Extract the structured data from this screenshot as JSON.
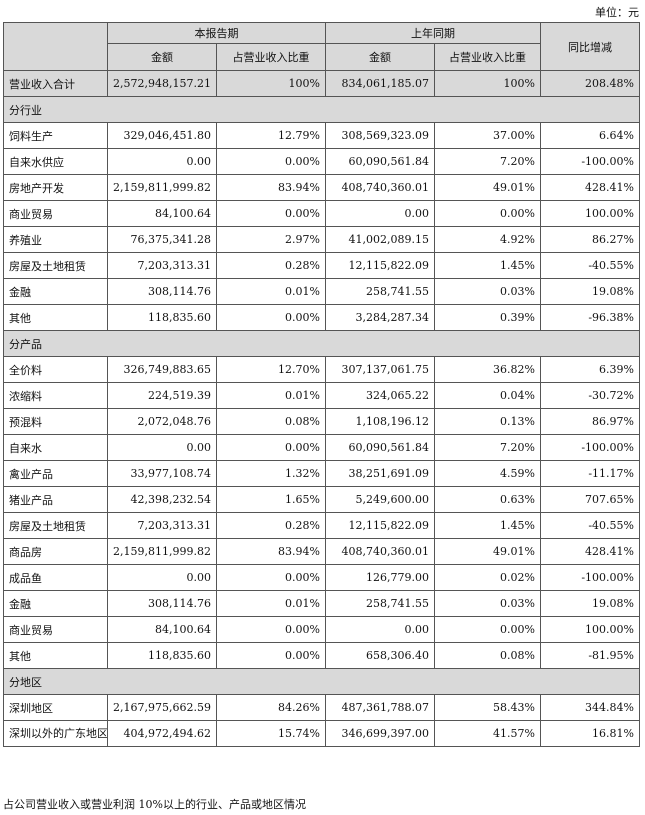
{
  "unit_label": "单位：元",
  "header": {
    "col_current": "本报告期",
    "col_prior": "上年同期",
    "col_yoy": "同比增减",
    "sub_amount": "金额",
    "sub_ratio": "占营业收入比重"
  },
  "total": {
    "name": "营业收入合计",
    "cur_amount": "2,572,948,157.21",
    "cur_ratio": "100%",
    "prior_amount": "834,061,185.07",
    "prior_ratio": "100%",
    "yoy": "208.48%"
  },
  "sections": [
    {
      "title": "分行业",
      "rows": [
        {
          "name": "饲料生产",
          "cur_amount": "329,046,451.80",
          "cur_ratio": "12.79%",
          "prior_amount": "308,569,323.09",
          "prior_ratio": "37.00%",
          "yoy": "6.64%"
        },
        {
          "name": "自来水供应",
          "cur_amount": "0.00",
          "cur_ratio": "0.00%",
          "prior_amount": "60,090,561.84",
          "prior_ratio": "7.20%",
          "yoy": "-100.00%"
        },
        {
          "name": "房地产开发",
          "cur_amount": "2,159,811,999.82",
          "cur_ratio": "83.94%",
          "prior_amount": "408,740,360.01",
          "prior_ratio": "49.01%",
          "yoy": "428.41%"
        },
        {
          "name": "商业贸易",
          "cur_amount": "84,100.64",
          "cur_ratio": "0.00%",
          "prior_amount": "0.00",
          "prior_ratio": "0.00%",
          "yoy": "100.00%"
        },
        {
          "name": "养殖业",
          "cur_amount": "76,375,341.28",
          "cur_ratio": "2.97%",
          "prior_amount": "41,002,089.15",
          "prior_ratio": "4.92%",
          "yoy": "86.27%"
        },
        {
          "name": "房屋及土地租赁",
          "cur_amount": "7,203,313.31",
          "cur_ratio": "0.28%",
          "prior_amount": "12,115,822.09",
          "prior_ratio": "1.45%",
          "yoy": "-40.55%"
        },
        {
          "name": "金融",
          "cur_amount": "308,114.76",
          "cur_ratio": "0.01%",
          "prior_amount": "258,741.55",
          "prior_ratio": "0.03%",
          "yoy": "19.08%"
        },
        {
          "name": "其他",
          "cur_amount": "118,835.60",
          "cur_ratio": "0.00%",
          "prior_amount": "3,284,287.34",
          "prior_ratio": "0.39%",
          "yoy": "-96.38%"
        }
      ]
    },
    {
      "title": "分产品",
      "rows": [
        {
          "name": "全价料",
          "cur_amount": "326,749,883.65",
          "cur_ratio": "12.70%",
          "prior_amount": "307,137,061.75",
          "prior_ratio": "36.82%",
          "yoy": "6.39%"
        },
        {
          "name": "浓缩料",
          "cur_amount": "224,519.39",
          "cur_ratio": "0.01%",
          "prior_amount": "324,065.22",
          "prior_ratio": "0.04%",
          "yoy": "-30.72%"
        },
        {
          "name": "预混料",
          "cur_amount": "2,072,048.76",
          "cur_ratio": "0.08%",
          "prior_amount": "1,108,196.12",
          "prior_ratio": "0.13%",
          "yoy": "86.97%"
        },
        {
          "name": "自来水",
          "cur_amount": "0.00",
          "cur_ratio": "0.00%",
          "prior_amount": "60,090,561.84",
          "prior_ratio": "7.20%",
          "yoy": "-100.00%"
        },
        {
          "name": "禽业产品",
          "cur_amount": "33,977,108.74",
          "cur_ratio": "1.32%",
          "prior_amount": "38,251,691.09",
          "prior_ratio": "4.59%",
          "yoy": "-11.17%"
        },
        {
          "name": "猪业产品",
          "cur_amount": "42,398,232.54",
          "cur_ratio": "1.65%",
          "prior_amount": "5,249,600.00",
          "prior_ratio": "0.63%",
          "yoy": "707.65%"
        },
        {
          "name": "房屋及土地租赁",
          "cur_amount": "7,203,313.31",
          "cur_ratio": "0.28%",
          "prior_amount": "12,115,822.09",
          "prior_ratio": "1.45%",
          "yoy": "-40.55%"
        },
        {
          "name": "商品房",
          "cur_amount": "2,159,811,999.82",
          "cur_ratio": "83.94%",
          "prior_amount": "408,740,360.01",
          "prior_ratio": "49.01%",
          "yoy": "428.41%"
        },
        {
          "name": "成品鱼",
          "cur_amount": "0.00",
          "cur_ratio": "0.00%",
          "prior_amount": "126,779.00",
          "prior_ratio": "0.02%",
          "yoy": "-100.00%"
        },
        {
          "name": "金融",
          "cur_amount": "308,114.76",
          "cur_ratio": "0.01%",
          "prior_amount": "258,741.55",
          "prior_ratio": "0.03%",
          "yoy": "19.08%"
        },
        {
          "name": "商业贸易",
          "cur_amount": "84,100.64",
          "cur_ratio": "0.00%",
          "prior_amount": "0.00",
          "prior_ratio": "0.00%",
          "yoy": "100.00%"
        },
        {
          "name": "其他",
          "cur_amount": "118,835.60",
          "cur_ratio": "0.00%",
          "prior_amount": "658,306.40",
          "prior_ratio": "0.08%",
          "yoy": "-81.95%"
        }
      ]
    },
    {
      "title": "分地区",
      "rows": [
        {
          "name": "深圳地区",
          "cur_amount": "2,167,975,662.59",
          "cur_ratio": "84.26%",
          "prior_amount": "487,361,788.07",
          "prior_ratio": "58.43%",
          "yoy": "344.84%"
        },
        {
          "name": "深圳以外的广东地区",
          "cur_amount": "404,972,494.62",
          "cur_ratio": "15.74%",
          "prior_amount": "346,699,397.00",
          "prior_ratio": "41.57%",
          "yoy": "16.81%"
        }
      ]
    }
  ],
  "footnote": "占公司营业收入或营业利润 10%以上的行业、产品或地区情况"
}
